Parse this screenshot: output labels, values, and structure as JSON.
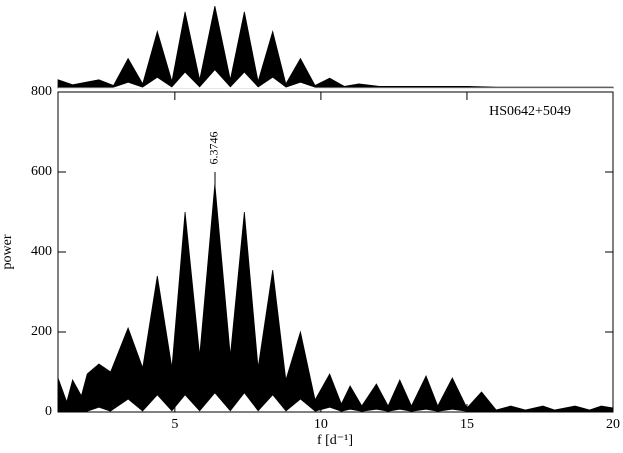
{
  "chart_data": [
    {
      "type": "area",
      "label": "HS0642+5049",
      "ylabel": "power",
      "xlabel": "f [d⁻¹]",
      "annotations": [
        {
          "x": 6.3746,
          "text": "6.3746"
        }
      ],
      "x": [
        1,
        1.3,
        1.5,
        1.8,
        2.0,
        2.4,
        2.8,
        3.4,
        3.9,
        4.4,
        4.9,
        5.35,
        5.85,
        6.37,
        6.9,
        7.38,
        7.85,
        8.35,
        8.8,
        9.3,
        9.8,
        10.3,
        10.7,
        11.0,
        11.4,
        11.9,
        12.3,
        12.7,
        13.1,
        13.6,
        14.0,
        14.5,
        15.0,
        15.5,
        16.0,
        16.5,
        17.0,
        17.6,
        18.0,
        18.7,
        19.2,
        19.6,
        20
      ],
      "series": [
        {
          "color": "#000000",
          "values": [
            85,
            25,
            80,
            40,
            95,
            120,
            100,
            210,
            110,
            340,
            110,
            500,
            140,
            570,
            140,
            500,
            110,
            355,
            80,
            200,
            30,
            95,
            20,
            65,
            15,
            70,
            15,
            80,
            15,
            90,
            15,
            85,
            10,
            50,
            5,
            15,
            5,
            15,
            5,
            15,
            5,
            15,
            10
          ]
        },
        {
          "color": "#ffffff",
          "values": [
            0,
            0,
            0,
            0,
            0,
            10,
            0,
            30,
            0,
            40,
            0,
            40,
            0,
            45,
            0,
            45,
            0,
            40,
            0,
            30,
            0,
            10,
            0,
            5,
            0,
            5,
            0,
            5,
            0,
            5,
            0,
            5,
            0,
            0,
            0,
            0,
            0,
            0,
            0,
            0,
            0,
            0,
            0
          ]
        }
      ],
      "xlim": [
        1,
        20
      ],
      "xticks": [
        5,
        10,
        15,
        20
      ],
      "ylim": [
        0,
        800
      ],
      "yticks": [
        0,
        200,
        400,
        600,
        800
      ]
    },
    {
      "type": "area",
      "x": [
        1,
        1.5,
        2.4,
        2.9,
        3.4,
        3.9,
        4.4,
        4.9,
        5.35,
        5.85,
        6.37,
        6.9,
        7.38,
        7.85,
        8.35,
        8.8,
        9.3,
        9.8,
        10.3,
        10.8,
        11.3,
        12,
        13,
        14,
        15,
        16,
        17,
        18,
        19,
        20
      ],
      "series": [
        {
          "color": "#000000",
          "values": [
            0.1,
            0.04,
            0.1,
            0.03,
            0.36,
            0.05,
            0.69,
            0.08,
            0.93,
            0.1,
            1.0,
            0.1,
            0.93,
            0.08,
            0.69,
            0.05,
            0.36,
            0.03,
            0.12,
            0.02,
            0.05,
            0.02,
            0.02,
            0.02,
            0.02,
            0.01,
            0.01,
            0.01,
            0.01,
            0.01
          ]
        },
        {
          "color": "#ffffff",
          "values": [
            0,
            0,
            0,
            0,
            0.06,
            0,
            0.12,
            0,
            0.18,
            0,
            0.21,
            0,
            0.18,
            0,
            0.12,
            0,
            0.06,
            0,
            0,
            0,
            0,
            0,
            0,
            0,
            0,
            0,
            0,
            0,
            0,
            0
          ]
        }
      ],
      "xlim": [
        1,
        20
      ],
      "ylim": [
        0,
        1.05
      ]
    }
  ]
}
